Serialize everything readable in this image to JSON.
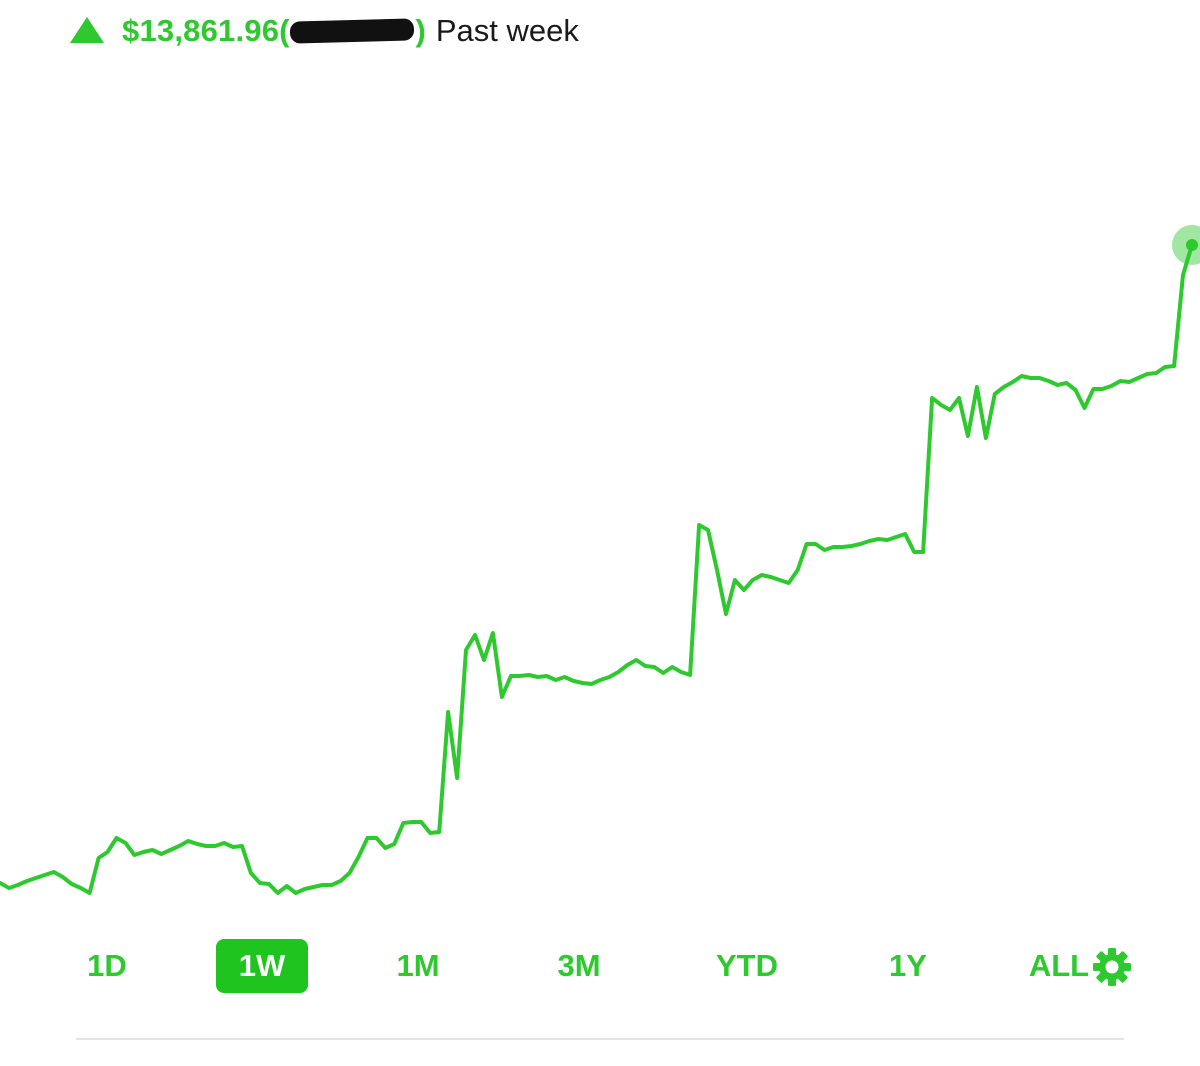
{
  "header": {
    "gain_amount": "$13,861.96",
    "paren_open": "(",
    "paren_close": ")",
    "period_label": "Past week",
    "redacted_note": "redacted percentage"
  },
  "colors": {
    "accent": "#2ec92e",
    "accent_active_bg": "#1fc41f",
    "divider": "#e4e4e4",
    "text_dark": "#1a1a1a"
  },
  "range_tabs": [
    {
      "label": "1D",
      "active": false
    },
    {
      "label": "1W",
      "active": true
    },
    {
      "label": "1M",
      "active": false
    },
    {
      "label": "3M",
      "active": false
    },
    {
      "label": "YTD",
      "active": false
    },
    {
      "label": "1Y",
      "active": false
    },
    {
      "label": "ALL",
      "active": false
    }
  ],
  "settings_icon": "gear-icon",
  "chart_data": {
    "type": "line",
    "series": [
      {
        "values": [
          883,
          888,
          885,
          881,
          878,
          875,
          872,
          877,
          884,
          888,
          893,
          858,
          852,
          838,
          843,
          855,
          852,
          850,
          854,
          850,
          846,
          841,
          844,
          846,
          846,
          843,
          847,
          846,
          873,
          883,
          884,
          893,
          886,
          893,
          889,
          887,
          885,
          885,
          881,
          873,
          857,
          838,
          838,
          848,
          844,
          823,
          822,
          822,
          833,
          832,
          712,
          778,
          650,
          635,
          660,
          633,
          697,
          676,
          676,
          675,
          677,
          676,
          680,
          677,
          681,
          683,
          684,
          680,
          677,
          672,
          665,
          660,
          666,
          667,
          673,
          667,
          672,
          675,
          525,
          530,
          570,
          614,
          580,
          590,
          580,
          575,
          577,
          580,
          583,
          570,
          544,
          544,
          550,
          547,
          547,
          546,
          544,
          541,
          539,
          540,
          537,
          534,
          552,
          552,
          398,
          405,
          410,
          398,
          436,
          387,
          438,
          394,
          387,
          382,
          376,
          378,
          378,
          381,
          385,
          383,
          390,
          408,
          389,
          389,
          386,
          381,
          382,
          378,
          374,
          373,
          367,
          366,
          275,
          245
        ]
      }
    ],
    "ylim": [
      0,
      920
    ],
    "grid": false,
    "legend": "none",
    "end_marker": true
  }
}
